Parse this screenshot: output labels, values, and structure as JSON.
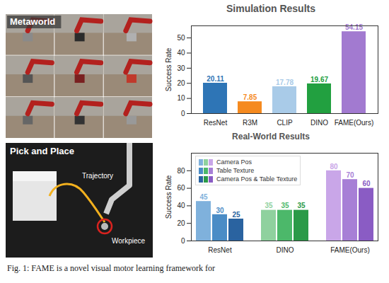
{
  "images": [
    {
      "label": "Metaworld"
    },
    {
      "label": "Pick and Place",
      "annotations": [
        "Trajectory",
        "Workpiece"
      ]
    }
  ],
  "caption": "Fig. 1: FAME is a novel visual motor learning framework for",
  "chart_data": [
    {
      "type": "bar",
      "title": "Simulation Results",
      "categories": [
        "ResNet",
        "R3M",
        "CLIP",
        "DINO",
        "FAME(Ours)"
      ],
      "values": [
        20.11,
        7.85,
        17.78,
        19.67,
        54.15
      ],
      "colors": [
        "#2e75b6",
        "#f58a1f",
        "#a9cbe8",
        "#22a040",
        "#a27ad0"
      ],
      "ylabel": "Success Rate",
      "ylim": [
        0,
        58
      ],
      "yticks": [
        0,
        10,
        20,
        30,
        40,
        50
      ],
      "data_labels": true,
      "grid": false
    },
    {
      "type": "bar",
      "title": "Real-World Results",
      "categories": [
        "ResNet",
        "DINO",
        "FAME(Ours)"
      ],
      "series": [
        {
          "name": "Camera Pos",
          "colors": [
            "#7fb1dc",
            "#8fd19e",
            "#c9a6e8"
          ],
          "values": [
            45,
            35,
            80
          ]
        },
        {
          "name": "Table Texture",
          "colors": [
            "#4a8cc6",
            "#4cb86a",
            "#a77fd6"
          ],
          "values": [
            30,
            35,
            70
          ]
        },
        {
          "name": "Camera Pos & Table Texture",
          "colors": [
            "#2a63a0",
            "#2a9a48",
            "#8a5cc4"
          ],
          "values": [
            25,
            35,
            60
          ]
        }
      ],
      "ylabel": "Success Rate",
      "ylim": [
        0,
        100
      ],
      "yticks": [
        0,
        20,
        40,
        60,
        80
      ],
      "data_labels": true,
      "legend": "top-left",
      "grid": false
    }
  ]
}
